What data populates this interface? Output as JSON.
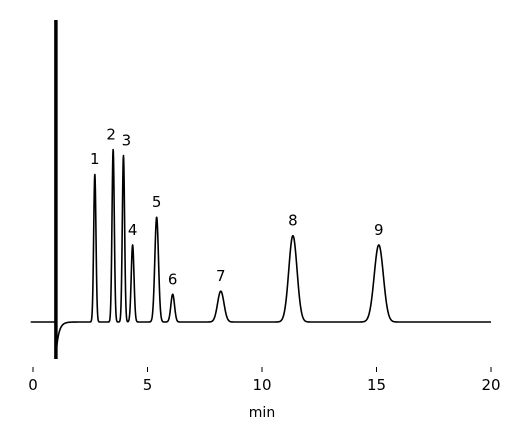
{
  "chart_data": {
    "type": "line",
    "title": "",
    "xlabel": "min",
    "ylabel": "",
    "xlim": [
      0,
      20
    ],
    "ylim": [
      0,
      1
    ],
    "x_ticks": [
      0,
      5,
      10,
      15,
      20
    ],
    "x_tick_labels": [
      "0",
      "5",
      "10",
      "15",
      "20"
    ],
    "grid": false,
    "legend": "none",
    "baseline": 0.02,
    "injection": {
      "x": 1.0,
      "spike_high": 1.0,
      "dip_low": -0.1
    },
    "peaks": [
      {
        "label": "1",
        "x": 2.7,
        "height": 0.5,
        "width": 0.05
      },
      {
        "label": "2",
        "x": 3.5,
        "height": 0.58,
        "width": 0.05
      },
      {
        "label": "3",
        "x": 3.95,
        "height": 0.56,
        "width": 0.05
      },
      {
        "label": "4",
        "x": 4.35,
        "height": 0.27,
        "width": 0.06
      },
      {
        "label": "5",
        "x": 5.4,
        "height": 0.36,
        "width": 0.08
      },
      {
        "label": "6",
        "x": 6.1,
        "height": 0.11,
        "width": 0.08
      },
      {
        "label": "7",
        "x": 8.2,
        "height": 0.12,
        "width": 0.14
      },
      {
        "label": "8",
        "x": 11.35,
        "height": 0.3,
        "width": 0.18
      },
      {
        "label": "9",
        "x": 15.1,
        "height": 0.27,
        "width": 0.2
      }
    ],
    "line_color": "#000000"
  }
}
